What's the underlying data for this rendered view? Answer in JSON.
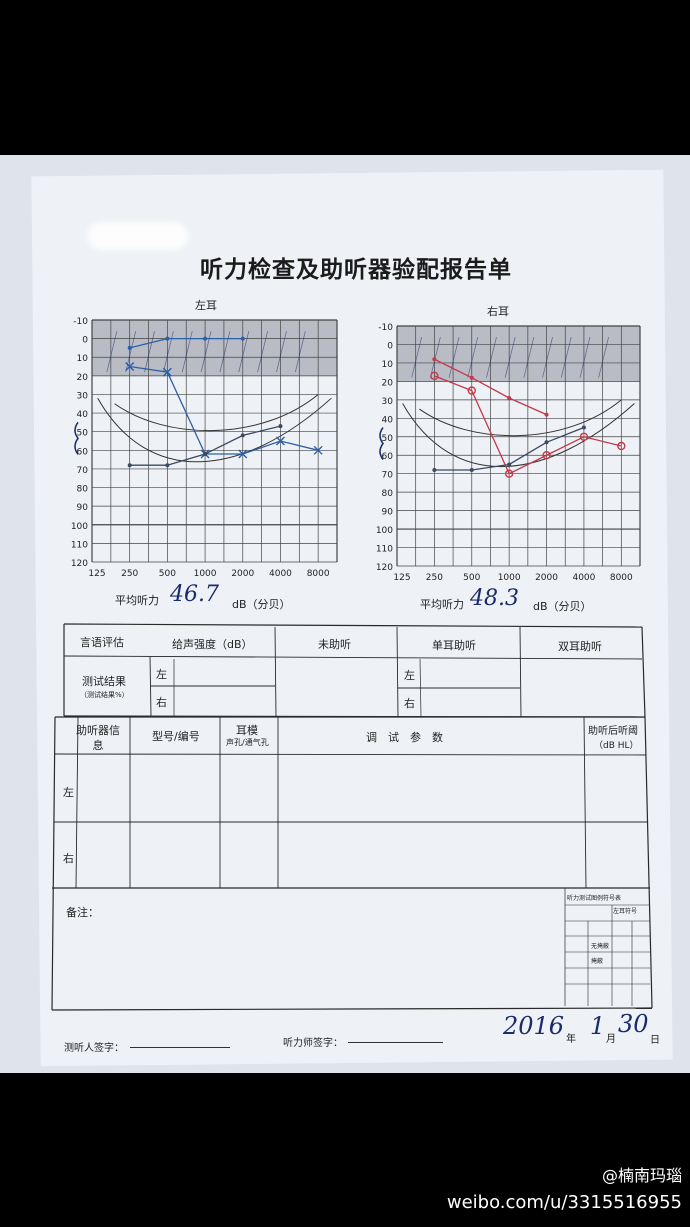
{
  "title": "听力检查及助听器验配报告单",
  "left_ear": {
    "label": "左耳",
    "avg_label": "平均听力",
    "avg_value": "46.7",
    "unit": "dB（分贝）"
  },
  "right_ear": {
    "label": "右耳",
    "avg_label": "平均听力",
    "avg_value": "48.3",
    "unit": "dB（分贝）"
  },
  "y_ticks": [
    "-10",
    "0",
    "10",
    "20",
    "30",
    "40",
    "50",
    "60",
    "70",
    "80",
    "90",
    "100",
    "110",
    "120"
  ],
  "x_ticks": [
    "125",
    "250",
    "500",
    "1000",
    "2000",
    "4000",
    "8000"
  ],
  "speech": {
    "header": "言语评估",
    "col1": "给声强度（dB）",
    "col2": "未助听",
    "col3": "单耳助听",
    "col4": "双耳助听",
    "row_label": "测试结果",
    "row_sub": "（测试结果%）",
    "left": "左",
    "right": "右"
  },
  "aid": {
    "col0": "助听器信息",
    "col1": "型号/编号",
    "col2": "耳模",
    "col2_sub": "声孔/通气孔",
    "col3": "调　试　参　数",
    "col4": "助听后听阈",
    "col4_sub": "（dB HL）",
    "left": "左",
    "right": "右"
  },
  "notes_label": "备注：",
  "legend": {
    "title": "听力测试图例符号表",
    "sub": "左耳符号",
    "row1": "无掩蔽",
    "row2": "掩蔽"
  },
  "sign": {
    "tester": "测听人签字：",
    "audiologist": "听力师签字：",
    "year": "2016",
    "year_suffix": "年",
    "month": "1",
    "month_suffix": "月",
    "day": "30",
    "day_suffix": "日"
  },
  "watermark": {
    "handle": "@楠南玛瑙",
    "url": "weibo.com/u/3315516955"
  },
  "chart_data": [
    {
      "type": "line",
      "title": "左耳",
      "x": [
        "250",
        "500",
        "1000",
        "2000",
        "4000",
        "8000"
      ],
      "ylim": [
        -10,
        120
      ],
      "series": [
        {
          "values": [
            15,
            18,
            62,
            62,
            55,
            60
          ],
          "color": "#2b5fa8"
        },
        {
          "values": [
            5,
            0,
            0,
            0,
            null,
            null
          ],
          "color": "#2b5fa8"
        },
        {
          "values": [
            68,
            68,
            62,
            52,
            47,
            null
          ],
          "color": "#3a4a62"
        }
      ]
    },
    {
      "type": "line",
      "title": "右耳",
      "x": [
        "250",
        "500",
        "1000",
        "2000",
        "4000",
        "8000"
      ],
      "ylim": [
        -10,
        120
      ],
      "series": [
        {
          "values": [
            17,
            25,
            70,
            60,
            50,
            55
          ],
          "color": "#c33a4c"
        },
        {
          "values": [
            8,
            18,
            29,
            38,
            null,
            null
          ],
          "color": "#c33a4c"
        },
        {
          "values": [
            68,
            68,
            65,
            53,
            45,
            null
          ],
          "color": "#3a4a62"
        }
      ]
    }
  ]
}
